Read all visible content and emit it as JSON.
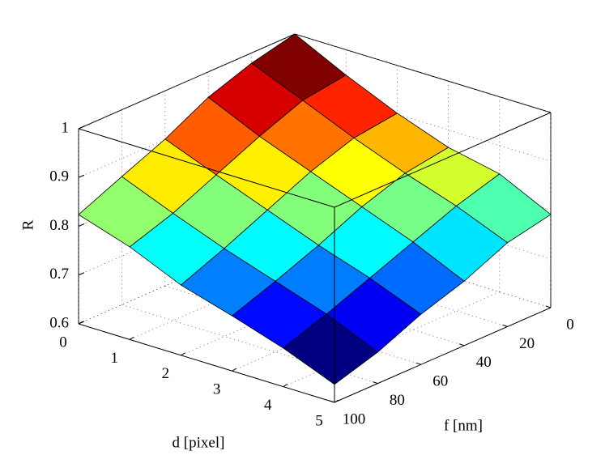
{
  "chart_data": {
    "type": "surface",
    "x_label": "d [pixel]",
    "y_label": "f [nm]",
    "z_label": "R",
    "x": [
      0,
      1,
      2,
      3,
      4,
      5
    ],
    "y": [
      0,
      20,
      40,
      60,
      80,
      100
    ],
    "z": [
      [
        1.0,
        0.979,
        0.948,
        0.901,
        0.863,
        0.824
      ],
      [
        0.948,
        0.935,
        0.9,
        0.86,
        0.82,
        0.79
      ],
      [
        0.902,
        0.89,
        0.86,
        0.82,
        0.78,
        0.744
      ],
      [
        0.864,
        0.85,
        0.82,
        0.78,
        0.745,
        0.713
      ],
      [
        0.842,
        0.815,
        0.78,
        0.745,
        0.71,
        0.679
      ],
      [
        0.791,
        0.772,
        0.732,
        0.703,
        0.664,
        0.637
      ]
    ],
    "xlim": [
      0,
      5
    ],
    "ylim": [
      0,
      100
    ],
    "zlim": [
      0.6,
      1
    ],
    "xticks": [
      0,
      1,
      2,
      3,
      4,
      5
    ],
    "yticks": [
      0,
      20,
      40,
      60,
      80,
      100
    ],
    "zticks": [
      0.6,
      0.7,
      0.8,
      0.9,
      1
    ],
    "grid": true,
    "colormap": "jet"
  }
}
